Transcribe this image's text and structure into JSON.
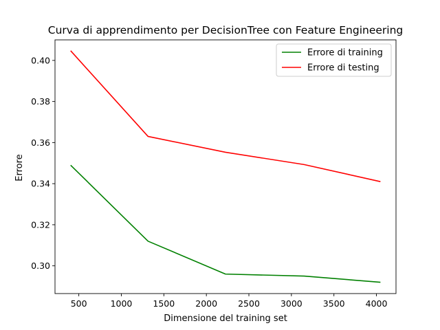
{
  "chart_data": {
    "type": "line",
    "title": "Curva di apprendimento per DecisionTree con Feature Engineering",
    "xlabel": "Dimensione del training set",
    "ylabel": "Errore",
    "xlim": [
      220,
      4230
    ],
    "ylim": [
      0.2865,
      0.41
    ],
    "x_ticks": [
      500,
      1000,
      1500,
      2000,
      2500,
      3000,
      3500,
      4000
    ],
    "x_tick_labels": [
      "500",
      "1000",
      "1500",
      "2000",
      "2500",
      "3000",
      "3500",
      "4000"
    ],
    "y_ticks": [
      0.3,
      0.32,
      0.34,
      0.36,
      0.38,
      0.4
    ],
    "y_tick_labels": [
      "0.30",
      "0.32",
      "0.34",
      "0.36",
      "0.38",
      "0.40"
    ],
    "grid": false,
    "legend_position": "top-right",
    "x": [
      404,
      1314,
      2224,
      3150,
      4047
    ],
    "series": [
      {
        "name": "Errore di training",
        "color": "#008000",
        "values": [
          0.349,
          0.312,
          0.296,
          0.295,
          0.292
        ]
      },
      {
        "name": "Errore di testing",
        "color": "#ff0000",
        "values": [
          0.4047,
          0.363,
          0.3553,
          0.3493,
          0.341
        ]
      }
    ]
  }
}
